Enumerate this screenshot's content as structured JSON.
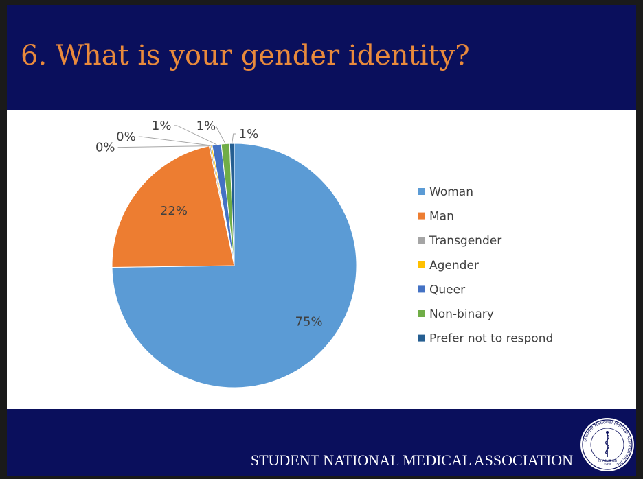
{
  "slide": {
    "title": "6. What is your gender identity?",
    "org_name": "STUDENT  NATIONAL MEDICAL ASSOCIATION",
    "seal_text": "Student National Medical Association, Inc.",
    "seal_established": "ESTABLISHED",
    "seal_year": "1964"
  },
  "chart_data": {
    "type": "pie",
    "title": "",
    "legend_position": "right",
    "slices": [
      {
        "name": "Woman",
        "value": 75,
        "label": "75%",
        "color": "#5b9bd5"
      },
      {
        "name": "Man",
        "value": 22,
        "label": "22%",
        "color": "#ed7d31"
      },
      {
        "name": "Transgender",
        "value": 0.2,
        "label": "0%",
        "color": "#a5a5a5"
      },
      {
        "name": "Agender",
        "value": 0.2,
        "label": "0%",
        "color": "#ffc000"
      },
      {
        "name": "Queer",
        "value": 1.2,
        "label": "1%",
        "color": "#4472c4"
      },
      {
        "name": "Non-binary",
        "value": 1.1,
        "label": "1%",
        "color": "#70ad47"
      },
      {
        "name": "Prefer not to respond",
        "value": 0.6,
        "label": "1%",
        "color": "#255e91"
      }
    ]
  }
}
